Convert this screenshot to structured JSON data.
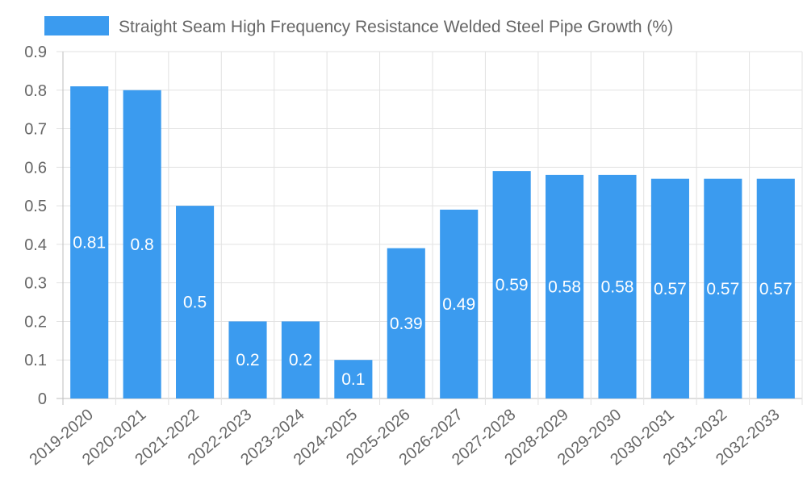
{
  "chart_data": {
    "type": "bar",
    "title": "",
    "xlabel": "",
    "ylabel": "",
    "legend": {
      "position": "top",
      "label": "Straight Seam High Frequency Resistance Welded Steel Pipe Growth (%)"
    },
    "categories": [
      "2019-2020",
      "2020-2021",
      "2021-2022",
      "2022-2023",
      "2023-2024",
      "2024-2025",
      "2025-2026",
      "2026-2027",
      "2027-2028",
      "2028-2029",
      "2029-2030",
      "2030-2031",
      "2031-2032",
      "2032-2033"
    ],
    "series": [
      {
        "name": "Straight Seam High Frequency Resistance Welded Steel Pipe Growth (%)",
        "values": [
          0.81,
          0.8,
          0.5,
          0.2,
          0.2,
          0.1,
          0.39,
          0.49,
          0.59,
          0.58,
          0.58,
          0.57,
          0.57,
          0.57
        ],
        "color": "#3b9bef"
      }
    ],
    "ylim": [
      0,
      0.9
    ],
    "yticks": [
      "0",
      "0.1",
      "0.2",
      "0.3",
      "0.4",
      "0.5",
      "0.6",
      "0.7",
      "0.8",
      "0.9"
    ],
    "grid": true,
    "data_labels": true
  }
}
